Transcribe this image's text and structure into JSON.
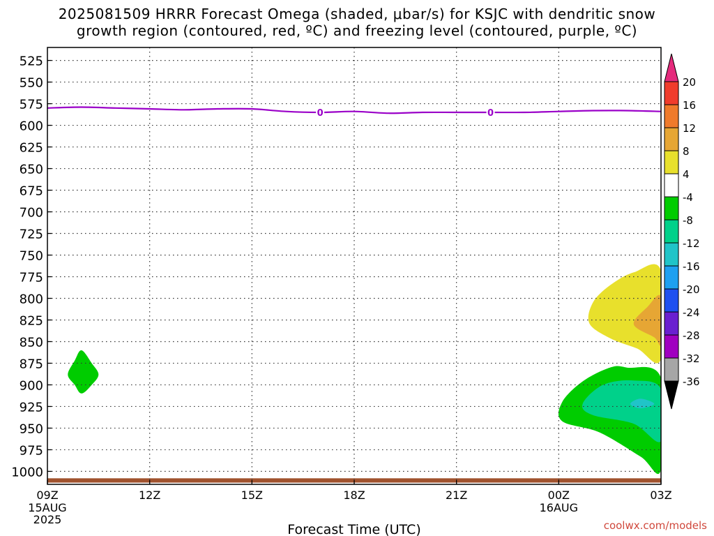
{
  "title": {
    "line1": "2025081509 HRRR Forecast Omega (shaded, μbar/s) for KSJC with dendritic snow",
    "line2": "growth region (contoured, red, ºC) and freezing level (contoured, purple, ºC)"
  },
  "credit": "coolwx.com/models",
  "chart_data": {
    "type": "contour",
    "xlabel": "Forecast Time (UTC)",
    "x_ticks": [
      {
        "label": "09Z",
        "sub": [
          "15AUG",
          "2025"
        ],
        "hours": 0
      },
      {
        "label": "12Z",
        "sub": [],
        "hours": 3
      },
      {
        "label": "15Z",
        "sub": [],
        "hours": 6
      },
      {
        "label": "18Z",
        "sub": [],
        "hours": 9
      },
      {
        "label": "21Z",
        "sub": [],
        "hours": 12
      },
      {
        "label": "00Z",
        "sub": [
          "16AUG"
        ],
        "hours": 15
      },
      {
        "label": "03Z",
        "sub": [],
        "hours": 18
      }
    ],
    "xlim": [
      0,
      18
    ],
    "y_ticks": [
      525,
      550,
      575,
      600,
      625,
      650,
      675,
      700,
      725,
      750,
      775,
      800,
      825,
      850,
      875,
      900,
      925,
      950,
      975,
      1000
    ],
    "ylim": [
      510,
      1015
    ],
    "grid": true,
    "freezing_level": {
      "label": "0",
      "label_hours": [
        8,
        13
      ],
      "points": [
        [
          0,
          580
        ],
        [
          1,
          579
        ],
        [
          2,
          580
        ],
        [
          3,
          581
        ],
        [
          4,
          582
        ],
        [
          5,
          581
        ],
        [
          6,
          581
        ],
        [
          7,
          584
        ],
        [
          8,
          585
        ],
        [
          9,
          584
        ],
        [
          10,
          586
        ],
        [
          11,
          585
        ],
        [
          12,
          585
        ],
        [
          13,
          585
        ],
        [
          14,
          585
        ],
        [
          15,
          584
        ],
        [
          16,
          583
        ],
        [
          17,
          583
        ],
        [
          18,
          584
        ]
      ]
    },
    "omega_regions": [
      {
        "level": -4,
        "color": "#00cc00",
        "points": [
          [
            1.0,
            860
          ],
          [
            1.3,
            875
          ],
          [
            1.5,
            888
          ],
          [
            1.3,
            900
          ],
          [
            1.0,
            910
          ],
          [
            0.8,
            900
          ],
          [
            0.6,
            888
          ],
          [
            0.8,
            872
          ]
        ]
      },
      {
        "level": 4,
        "color": "#e8e02c",
        "points": [
          [
            18,
            768
          ],
          [
            17.2,
            770
          ],
          [
            16.5,
            785
          ],
          [
            16.0,
            805
          ],
          [
            15.9,
            829
          ],
          [
            16.5,
            846
          ],
          [
            17.3,
            858
          ],
          [
            18,
            870
          ]
        ]
      },
      {
        "level": 8,
        "color": "#e6a634",
        "points": [
          [
            18,
            798
          ],
          [
            17.6,
            810
          ],
          [
            17.2,
            830
          ],
          [
            17.8,
            845
          ],
          [
            18,
            852
          ]
        ]
      },
      {
        "level": -4,
        "color": "#00cc00",
        "points": [
          [
            15.1,
            920
          ],
          [
            15.7,
            896
          ],
          [
            16.5,
            880
          ],
          [
            17.0,
            880
          ],
          [
            18,
            892
          ],
          [
            18,
            998
          ],
          [
            17.4,
            983
          ],
          [
            16.2,
            955
          ],
          [
            15.1,
            942
          ]
        ]
      },
      {
        "level": -8,
        "color": "#00d18a",
        "points": [
          [
            15.7,
            922
          ],
          [
            16.3,
            900
          ],
          [
            17.2,
            895
          ],
          [
            18,
            905
          ],
          [
            18,
            965
          ],
          [
            17.2,
            945
          ],
          [
            16.0,
            935
          ]
        ]
      },
      {
        "level": -12,
        "color": "#20c4c8",
        "points": [
          [
            17.1,
            922
          ],
          [
            17.4,
            916
          ],
          [
            17.8,
            922
          ],
          [
            17.4,
            927
          ]
        ]
      }
    ],
    "surface": {
      "color": "#a0522d",
      "top_level": 1008,
      "bottom_level": 1013
    },
    "colorbar": {
      "ticks": [
        "20",
        "16",
        "12",
        "8",
        "4",
        "-4",
        "-8",
        "-12",
        "-16",
        "-20",
        "-24",
        "-28",
        "-32",
        "-36"
      ],
      "segments": [
        "#e52a7c",
        "#f03c2c",
        "#ef7a2b",
        "#e6a634",
        "#e8e02c",
        "#ffffff",
        "#00cc00",
        "#00d18a",
        "#20c4c8",
        "#1ea0f0",
        "#1e50f0",
        "#6a20d0",
        "#a000c0",
        "#a6a6a6",
        "#000000"
      ]
    }
  }
}
